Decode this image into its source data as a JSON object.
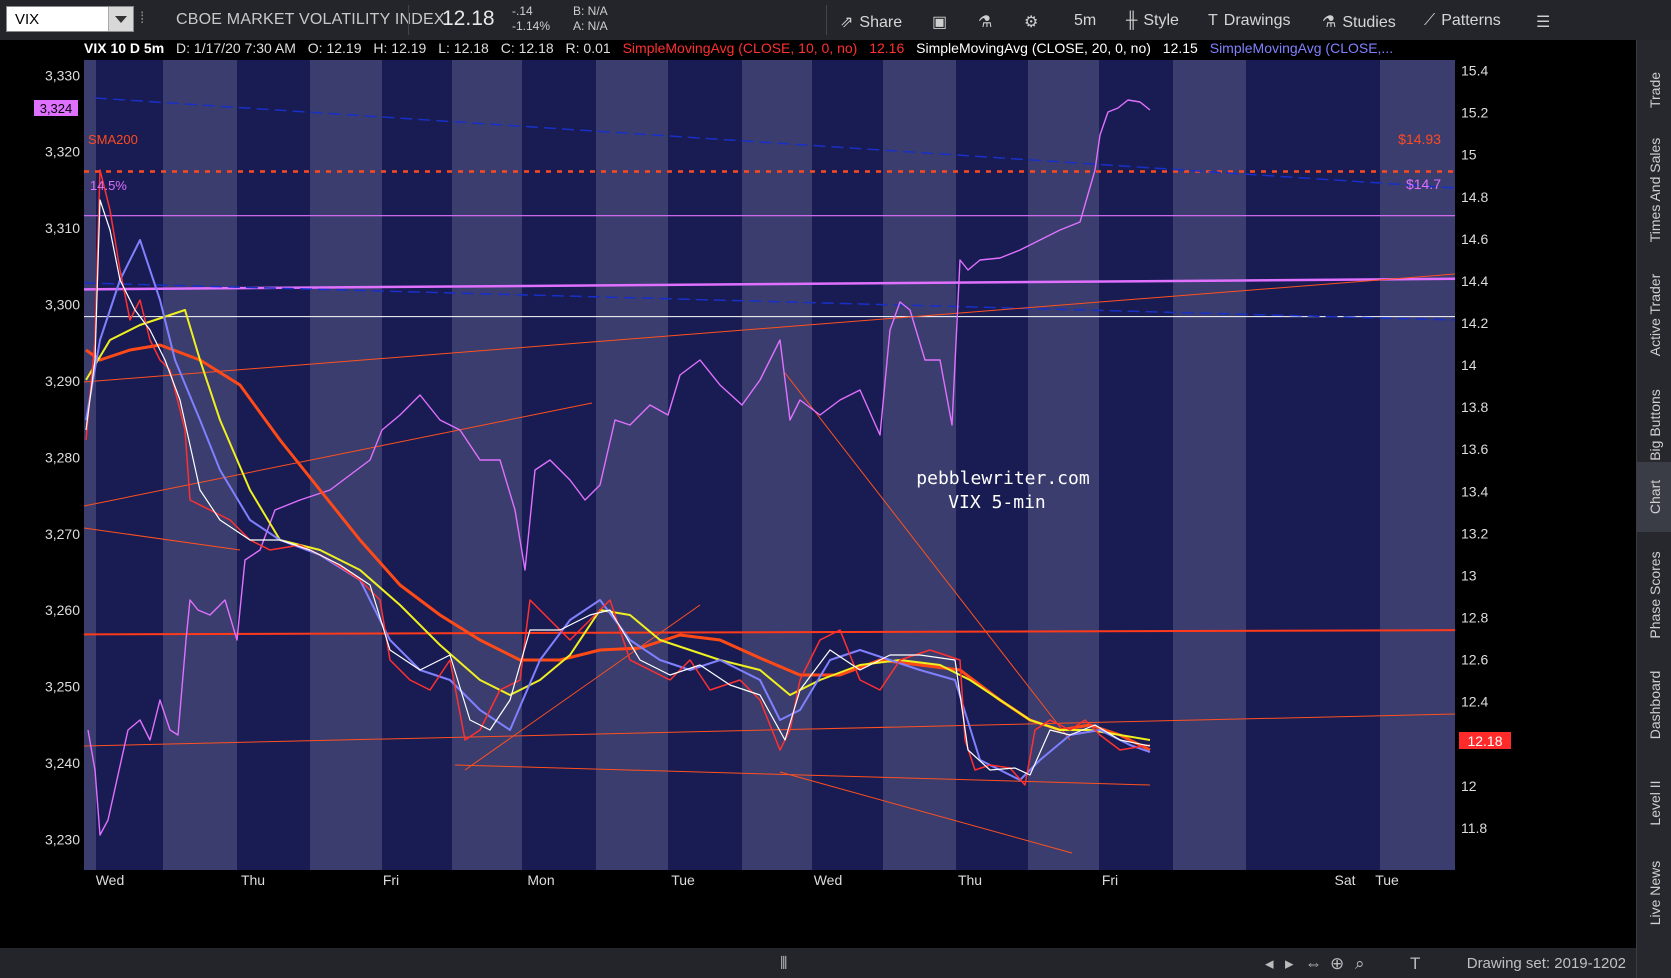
{
  "toolbar": {
    "symbol": "VIX",
    "name": "CBOE MARKET VOLATILITY INDEX",
    "last": "12.18",
    "change": "-.14",
    "change_pct": "-1.14%",
    "bid": "B: N/A",
    "ask": "A: N/A",
    "share": "Share",
    "period": "5m",
    "style": "Style",
    "drawings": "Drawings",
    "studies": "Studies",
    "patterns": "Patterns"
  },
  "header": {
    "instrument": "VIX 10 D 5m",
    "date": "D: 1/17/20 7:30 AM",
    "open": "O: 12.19",
    "high": "H: 12.19",
    "low": "L: 12.18",
    "close": "C: 12.18",
    "range": "R: 0.01",
    "sma10_label": "SimpleMovingAvg (CLOSE, 10, 0, no)",
    "sma10_value": "12.16",
    "sma20_label": "SimpleMovingAvg (CLOSE, 20, 0, no)",
    "sma20_value": "12.15",
    "sma3_label": "SimpleMovingAvg (CLOSE,..."
  },
  "colors": {
    "sma10": "#ff3030",
    "sma20": "#ffffff",
    "sma3": "#8080ff",
    "spx": "#e070ff",
    "sma200": "#ff5020",
    "yellow": "#f0f020",
    "bg_dark": "#191c52",
    "bg_light": "#3a3d6e"
  },
  "annotations": {
    "left_price_tag": "3,324",
    "sma200_label": "SMA200",
    "pct_label": "14.5%",
    "price_1493": "$14.93",
    "price_147": "$14.7",
    "current_price": "12.18",
    "watermark_line1": "pebblewriter.com",
    "watermark_line2": "VIX 5-min"
  },
  "right_tabs": [
    "Trade",
    "Times And Sales",
    "Active Trader",
    "Big Buttons",
    "Chart",
    "Phase Scores",
    "Dashboard",
    "Level II",
    "Live News"
  ],
  "bottom": {
    "drawing_set": "Drawing set: 2019-1202"
  },
  "chart_data": {
    "type": "line",
    "title": "",
    "x_labels": [
      "Wed",
      "Thu",
      "Fri",
      "Mon",
      "Tue",
      "Wed",
      "Thu",
      "Fri",
      "Sat",
      "Tue"
    ],
    "left_axis": {
      "ticks": [
        "3,330",
        "3,320",
        "3,310",
        "3,300",
        "3,290",
        "3,280",
        "3,270",
        "3,260",
        "3,250",
        "3,240",
        "3,230"
      ],
      "range": [
        3226,
        3332
      ]
    },
    "right_axis": {
      "ticks": [
        "15.4",
        "15.2",
        "15",
        "14.8",
        "14.6",
        "14.4",
        "14.2",
        "14",
        "13.8",
        "13.6",
        "13.4",
        "13.2",
        "13",
        "12.8",
        "12.6",
        "12.4",
        "12.2",
        "12",
        "11.8"
      ],
      "range": [
        11.6,
        15.45
      ]
    },
    "series": [
      {
        "name": "SimpleMovingAvg (CLOSE, 10, 0, no)",
        "values": [
          12.16
        ]
      },
      {
        "name": "SimpleMovingAvg (CLOSE, 20, 0, no)",
        "values": [
          12.15
        ]
      }
    ],
    "grid": false,
    "legend": "top"
  }
}
